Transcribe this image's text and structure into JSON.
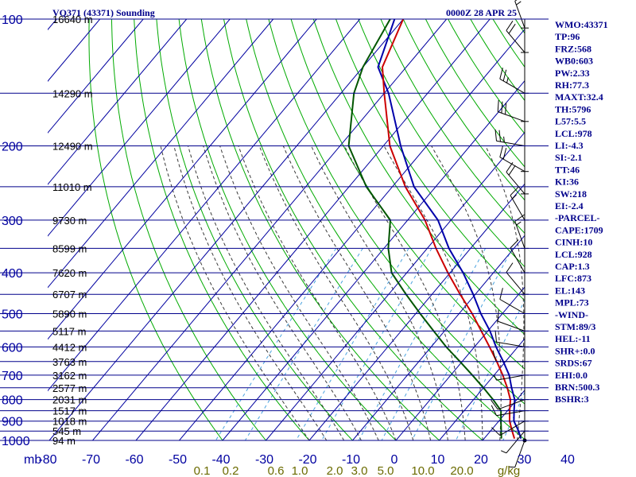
{
  "header": {
    "title": "VQ371 (43371) Sounding",
    "time": "0000Z 28 APR 25"
  },
  "colors": {
    "background": "#ffffff",
    "isobar": "#00008b",
    "isotherm": "#0000a0",
    "dry_adiabat": "#00aa00",
    "moist_adiabat": "#3a3a3a",
    "mixing_ratio": "#4aa3df",
    "temperature": "#0000aa",
    "parcel": "#cc0000",
    "dewpoint": "#005500",
    "wind": "#000000",
    "axis_text": "#0000a0",
    "mixing_text": "#6b6b00"
  },
  "axis": {
    "mb_label": "mb",
    "pressure_labels": [
      "100",
      "200",
      "300",
      "400",
      "500",
      "600",
      "700",
      "800",
      "900",
      "1000"
    ],
    "temp_labels": [
      "-80",
      "-70",
      "-60",
      "-50",
      "-40",
      "-30",
      "-20",
      "-10",
      "0",
      "10",
      "20",
      "30",
      "40"
    ],
    "height_labels": [
      "16640 m",
      "14290 m",
      "12490 m",
      "11010 m",
      "9730 m",
      "8599 m",
      "7620 m",
      "6707 m",
      "5890 m",
      "5117 m",
      "4412 m",
      "3763 m",
      "3162 m",
      "2577 m",
      "2031 m",
      "1517 m",
      "1018 m",
      "545 m",
      "94 m"
    ],
    "mixing_labels": [
      "0.1",
      "0.2",
      "0.6",
      "1.0",
      "2.0",
      "3.0",
      "5.0",
      "10.0",
      "20.0",
      "g/kg"
    ]
  },
  "indices": [
    "WMO:43371",
    "TP:96",
    "FRZ:568",
    "WB0:603",
    "PW:2.33",
    "RH:77.3",
    "MAXT:32.4",
    "TH:5796",
    "L57:5.5",
    "LCL:978",
    "LI:-4.3",
    "SI:-2.1",
    "TT:46",
    "KI:36",
    "SW:218",
    "EI:-2.4",
    "-PARCEL-",
    "CAPE:1709",
    "CINH:10",
    "LCL:928",
    "CAP:1.3",
    "LFC:873",
    "EL:143",
    "MPL:73",
    "-WIND-",
    "STM:89/3",
    "HEL:-11",
    "SHR+:0.0",
    "SRDS:67",
    "EHI:0.0",
    "BRN:500.3",
    "BSHR:3"
  ],
  "chart_data": {
    "type": "line",
    "title": "VQ371 (43371) Sounding",
    "subtitle": "0000Z 28 APR 25",
    "xlabel": "",
    "ylabel": "mb",
    "pressure_levels_mb": [
      100,
      150,
      200,
      250,
      300,
      350,
      400,
      450,
      500,
      550,
      600,
      650,
      700,
      750,
      800,
      850,
      900,
      950,
      1000
    ],
    "heights_m": [
      16640,
      14290,
      12490,
      11010,
      9730,
      8599,
      7620,
      6707,
      5890,
      5117,
      4412,
      3763,
      3162,
      2577,
      2031,
      1517,
      1018,
      545,
      94
    ],
    "xlim_tick_values_C": [
      -80,
      -70,
      -60,
      -50,
      -40,
      -30,
      -20,
      -10,
      0,
      10,
      20,
      30,
      40
    ],
    "ylim_mb": [
      100,
      1000
    ],
    "grid": true,
    "series": [
      {
        "id": "temperature",
        "color": "#0000aa",
        "points": [
          [
            -82,
            100
          ],
          [
            -76.5,
            130
          ],
          [
            -69,
            150
          ],
          [
            -56,
            200
          ],
          [
            -45,
            250
          ],
          [
            -33,
            300
          ],
          [
            -25,
            350
          ],
          [
            -17,
            400
          ],
          [
            -10.5,
            450
          ],
          [
            -5,
            500
          ],
          [
            0.5,
            550
          ],
          [
            5,
            600
          ],
          [
            9.5,
            650
          ],
          [
            13.5,
            700
          ],
          [
            16.5,
            750
          ],
          [
            19.5,
            800
          ],
          [
            21.5,
            850
          ],
          [
            23.5,
            900
          ],
          [
            26.5,
            950
          ],
          [
            28.5,
            990
          ]
        ]
      },
      {
        "id": "parcel",
        "color": "#cc0000",
        "points": [
          [
            -80,
            100
          ],
          [
            -75.5,
            130
          ],
          [
            -70,
            150
          ],
          [
            -58.5,
            200
          ],
          [
            -47,
            250
          ],
          [
            -36,
            300
          ],
          [
            -28,
            350
          ],
          [
            -20.5,
            400
          ],
          [
            -13.5,
            450
          ],
          [
            -7,
            500
          ],
          [
            -1.5,
            550
          ],
          [
            3.5,
            600
          ],
          [
            8,
            650
          ],
          [
            12,
            700
          ],
          [
            15.5,
            750
          ],
          [
            18.5,
            800
          ],
          [
            20.5,
            850
          ],
          [
            22.5,
            900
          ],
          [
            25,
            950
          ],
          [
            27,
            990
          ]
        ]
      },
      {
        "id": "dewpoint",
        "color": "#005500",
        "points": [
          [
            -83,
            100
          ],
          [
            -80,
            130
          ],
          [
            -77,
            150
          ],
          [
            -68,
            200
          ],
          [
            -56,
            250
          ],
          [
            -44,
            300
          ],
          [
            -39,
            350
          ],
          [
            -33.5,
            400
          ],
          [
            -26,
            450
          ],
          [
            -19,
            500
          ],
          [
            -12.5,
            550
          ],
          [
            -6.5,
            600
          ],
          [
            -0.5,
            650
          ],
          [
            5,
            700
          ],
          [
            10,
            750
          ],
          [
            14.5,
            800
          ],
          [
            18.5,
            850
          ],
          [
            20.5,
            900
          ],
          [
            22.5,
            950
          ],
          [
            24,
            990
          ]
        ]
      }
    ],
    "wind_barbs": [
      {
        "p": 105,
        "dir": 340,
        "kt": 15
      },
      {
        "p": 120,
        "dir": 320,
        "kt": 20
      },
      {
        "p": 150,
        "dir": 300,
        "kt": 25
      },
      {
        "p": 175,
        "dir": 290,
        "kt": 30
      },
      {
        "p": 200,
        "dir": 280,
        "kt": 25
      },
      {
        "p": 230,
        "dir": 300,
        "kt": 20
      },
      {
        "p": 260,
        "dir": 320,
        "kt": 20
      },
      {
        "p": 300,
        "dir": 330,
        "kt": 15
      },
      {
        "p": 350,
        "dir": 340,
        "kt": 15
      },
      {
        "p": 400,
        "dir": 330,
        "kt": 10
      },
      {
        "p": 450,
        "dir": 320,
        "kt": 10
      },
      {
        "p": 500,
        "dir": 300,
        "kt": 10
      },
      {
        "p": 550,
        "dir": 290,
        "kt": 10
      },
      {
        "p": 600,
        "dir": 280,
        "kt": 10
      },
      {
        "p": 650,
        "dir": 270,
        "kt": 10
      },
      {
        "p": 700,
        "dir": 260,
        "kt": 5
      },
      {
        "p": 800,
        "dir": 250,
        "kt": 10
      },
      {
        "p": 850,
        "dir": 260,
        "kt": 10
      },
      {
        "p": 900,
        "dir": 240,
        "kt": 10
      },
      {
        "p": 950,
        "dir": 220,
        "kt": 5
      },
      {
        "p": 1000,
        "dir": 200,
        "kt": 5
      }
    ]
  }
}
